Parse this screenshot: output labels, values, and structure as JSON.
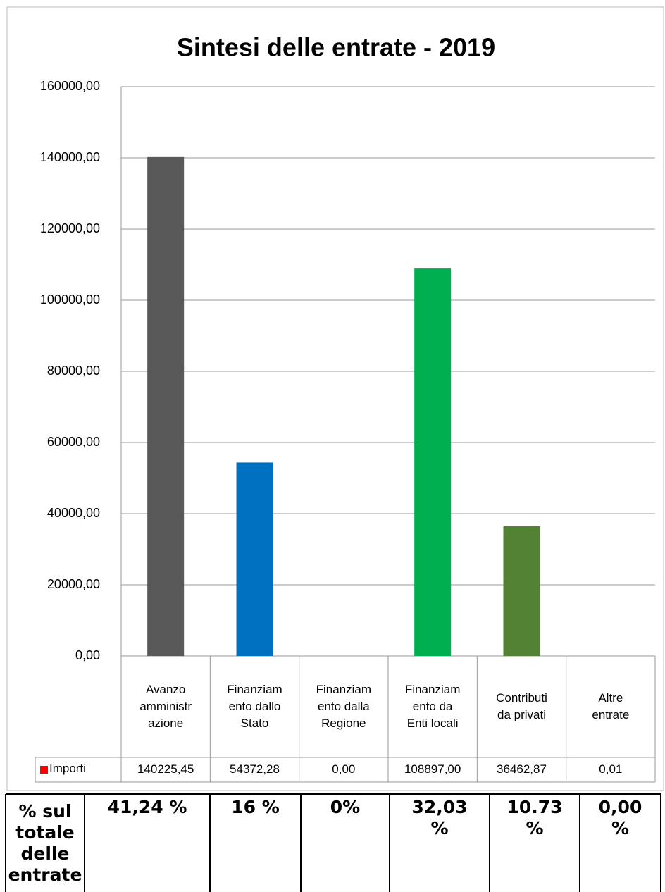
{
  "chart_data": {
    "type": "bar",
    "title": "Sintesi delle entrate - 2019",
    "categories": [
      "Avanzo amministrazione",
      "Finanziamento dallo Stato",
      "Finanziamento dalla Regione",
      "Finanziamento da Enti locali",
      "Contributi da privati",
      "Altre entrate"
    ],
    "series": [
      {
        "name": "Importi",
        "legend_color": "#ff0000",
        "colors": [
          "#595959",
          "#0070c0",
          "#0070c0",
          "#00b050",
          "#548235",
          "#548235"
        ],
        "values": [
          140225.45,
          54372.28,
          0,
          108897,
          36462.87,
          0.01
        ],
        "value_labels": [
          "140225,45",
          "54372,28",
          "0,00",
          "108897,00",
          "36462,87",
          "0,01"
        ]
      }
    ],
    "ylim": [
      0,
      160000
    ],
    "yticks": [
      {
        "value": 0,
        "label": "0,00"
      },
      {
        "value": 20000,
        "label": "20000,00"
      },
      {
        "value": 40000,
        "label": "40000,00"
      },
      {
        "value": 60000,
        "label": "60000,00"
      },
      {
        "value": 80000,
        "label": "80000,00"
      },
      {
        "value": 100000,
        "label": "100000,00"
      },
      {
        "value": 120000,
        "label": "120000,00"
      },
      {
        "value": 140000,
        "label": "140000,00"
      },
      {
        "value": 160000,
        "label": "160000,00"
      }
    ],
    "grid": true
  },
  "table": {
    "header": "% sul totale delle entrate",
    "cells": [
      "41,24 %",
      "16 %",
      "0%",
      "32,03 %",
      "10.73 %",
      "0,00 %"
    ]
  }
}
